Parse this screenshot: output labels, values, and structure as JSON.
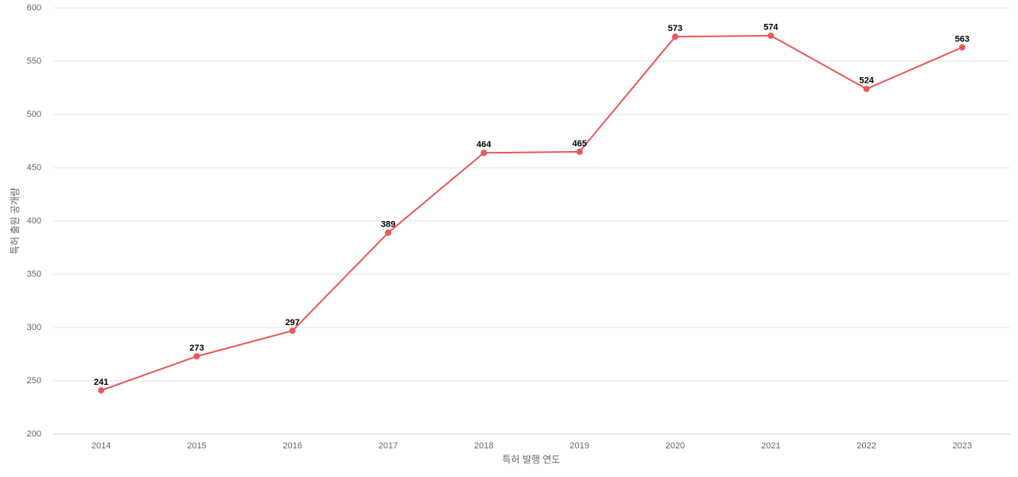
{
  "chart_data": {
    "type": "line",
    "x_label": "특허 발행 연도",
    "y_label": "특허 출원 공개량",
    "categories": [
      "2014",
      "2015",
      "2016",
      "2017",
      "2018",
      "2019",
      "2020",
      "2021",
      "2022",
      "2023"
    ],
    "series": [
      {
        "color": "#e85a5a",
        "values": [
          241,
          273,
          297,
          389,
          464,
          465,
          573,
          574,
          524,
          563
        ]
      }
    ],
    "ylim": [
      200,
      600
    ],
    "yticks": [
      200,
      250,
      300,
      350,
      400,
      450,
      500,
      550,
      600
    ],
    "grid": true
  }
}
